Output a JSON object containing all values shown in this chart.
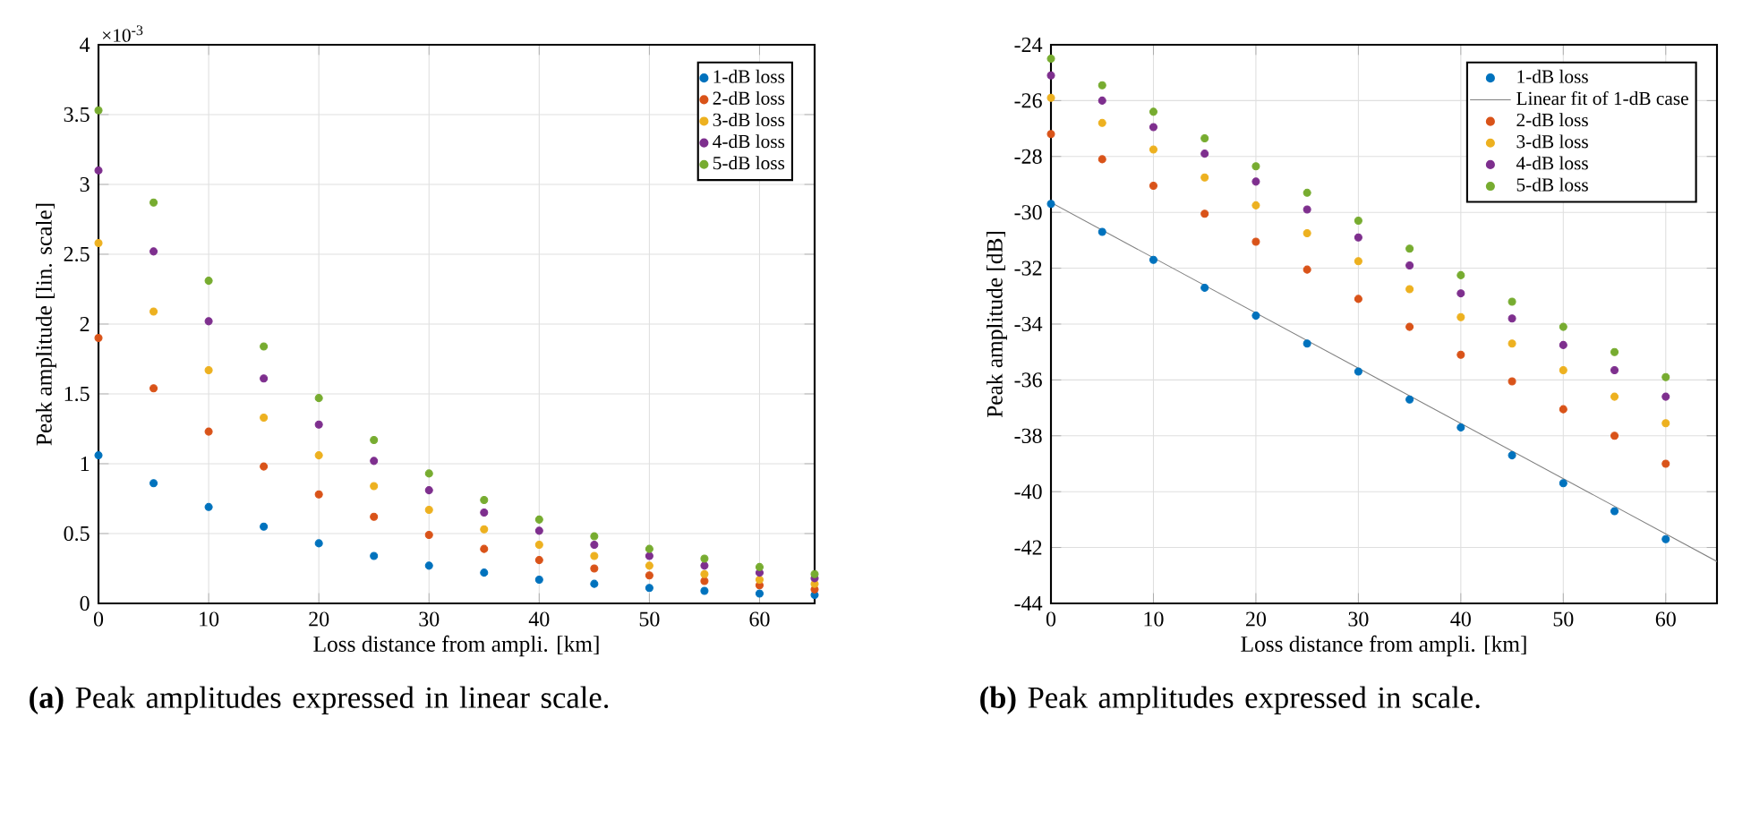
{
  "chart_data": [
    {
      "type": "scatter",
      "xlabel": "Loss distance from ampli. [km]",
      "ylabel": "Peak amplitude [lin. scale]",
      "x": [
        0,
        5,
        10,
        15,
        20,
        25,
        30,
        35,
        40,
        45,
        50,
        55,
        60,
        65
      ],
      "series": [
        {
          "name": "1-dB loss",
          "color": "#0072bd",
          "values": [
            1.06,
            0.86,
            0.69,
            0.55,
            0.43,
            0.34,
            0.27,
            0.22,
            0.17,
            0.14,
            0.11,
            0.09,
            0.07,
            0.06
          ]
        },
        {
          "name": "2-dB loss",
          "color": "#d95319",
          "values": [
            1.9,
            1.54,
            1.23,
            0.98,
            0.78,
            0.62,
            0.49,
            0.39,
            0.31,
            0.25,
            0.2,
            0.16,
            0.13,
            0.1
          ]
        },
        {
          "name": "3-dB loss",
          "color": "#edb120",
          "values": [
            2.58,
            2.09,
            1.67,
            1.33,
            1.06,
            0.84,
            0.67,
            0.53,
            0.42,
            0.34,
            0.27,
            0.21,
            0.17,
            0.14
          ]
        },
        {
          "name": "4-dB loss",
          "color": "#7e2f8e",
          "values": [
            3.1,
            2.52,
            2.02,
            1.61,
            1.28,
            1.02,
            0.81,
            0.65,
            0.52,
            0.42,
            0.34,
            0.27,
            0.22,
            0.18
          ]
        },
        {
          "name": "5-dB loss",
          "color": "#77ac30",
          "values": [
            3.53,
            2.87,
            2.31,
            1.84,
            1.47,
            1.17,
            0.93,
            0.74,
            0.6,
            0.48,
            0.39,
            0.32,
            0.26,
            0.21
          ]
        }
      ],
      "xlim": [
        0,
        65
      ],
      "ylim": [
        0,
        4
      ],
      "xticks": [
        0,
        10,
        20,
        30,
        40,
        50,
        60
      ],
      "yticks": [
        0,
        0.5,
        1,
        1.5,
        2,
        2.5,
        3,
        3.5,
        4
      ],
      "grid": true,
      "legend": "top right",
      "marker": "circle",
      "annotations": [
        "×10$^{-3}$",
        "**(a)** Peak amplitudes expressed in linear scale."
      ]
    },
    {
      "type": "scatter",
      "xlabel": "Loss distance from ampli. [km]",
      "ylabel": "Peak amplitude [dB]",
      "x": [
        0,
        5,
        10,
        15,
        20,
        25,
        30,
        35,
        40,
        45,
        50,
        55,
        60
      ],
      "series": [
        {
          "name": "1-dB loss",
          "color": "#0072bd",
          "values": [
            -29.7,
            -30.7,
            -31.7,
            -32.7,
            -33.7,
            -34.7,
            -35.7,
            -36.7,
            -37.7,
            -38.7,
            -39.7,
            -40.7,
            -41.7
          ]
        },
        {
          "name": "Linear fit of 1-dB case",
          "type": "line",
          "marker": "none",
          "color": "#808080",
          "x": [
            0,
            65
          ],
          "values": [
            -29.65,
            -42.5
          ]
        },
        {
          "name": "2-dB loss",
          "color": "#d95319",
          "values": [
            -27.2,
            -28.1,
            -29.05,
            -30.05,
            -31.05,
            -32.05,
            -33.1,
            -34.1,
            -35.1,
            -36.05,
            -37.05,
            -38,
            -39
          ]
        },
        {
          "name": "3-dB loss",
          "color": "#edb120",
          "values": [
            -25.9,
            -26.8,
            -27.75,
            -28.75,
            -29.75,
            -30.75,
            -31.75,
            -32.75,
            -33.75,
            -34.7,
            -35.65,
            -36.6,
            -37.55
          ]
        },
        {
          "name": "4-dB loss",
          "color": "#7e2f8e",
          "values": [
            -25.1,
            -26,
            -26.95,
            -27.9,
            -28.9,
            -29.9,
            -30.9,
            -31.9,
            -32.9,
            -33.8,
            -34.75,
            -35.65,
            -36.6
          ]
        },
        {
          "name": "5-dB loss",
          "color": "#77ac30",
          "values": [
            -24.5,
            -25.45,
            -26.4,
            -27.35,
            -28.35,
            -29.3,
            -30.3,
            -31.3,
            -32.25,
            -33.2,
            -34.1,
            -35,
            -35.9
          ]
        }
      ],
      "xlim": [
        0,
        65
      ],
      "ylim": [
        -44,
        -24
      ],
      "xticks": [
        0,
        10,
        20,
        30,
        40,
        50,
        60
      ],
      "yticks": [
        -44,
        -42,
        -40,
        -38,
        -36,
        -34,
        -32,
        -30,
        -28,
        -26,
        -24
      ],
      "grid": true,
      "legend": "top right",
      "marker": "circle",
      "annotations": [
        "**(b)** Peak amplitudes expressed in scale."
      ]
    }
  ]
}
